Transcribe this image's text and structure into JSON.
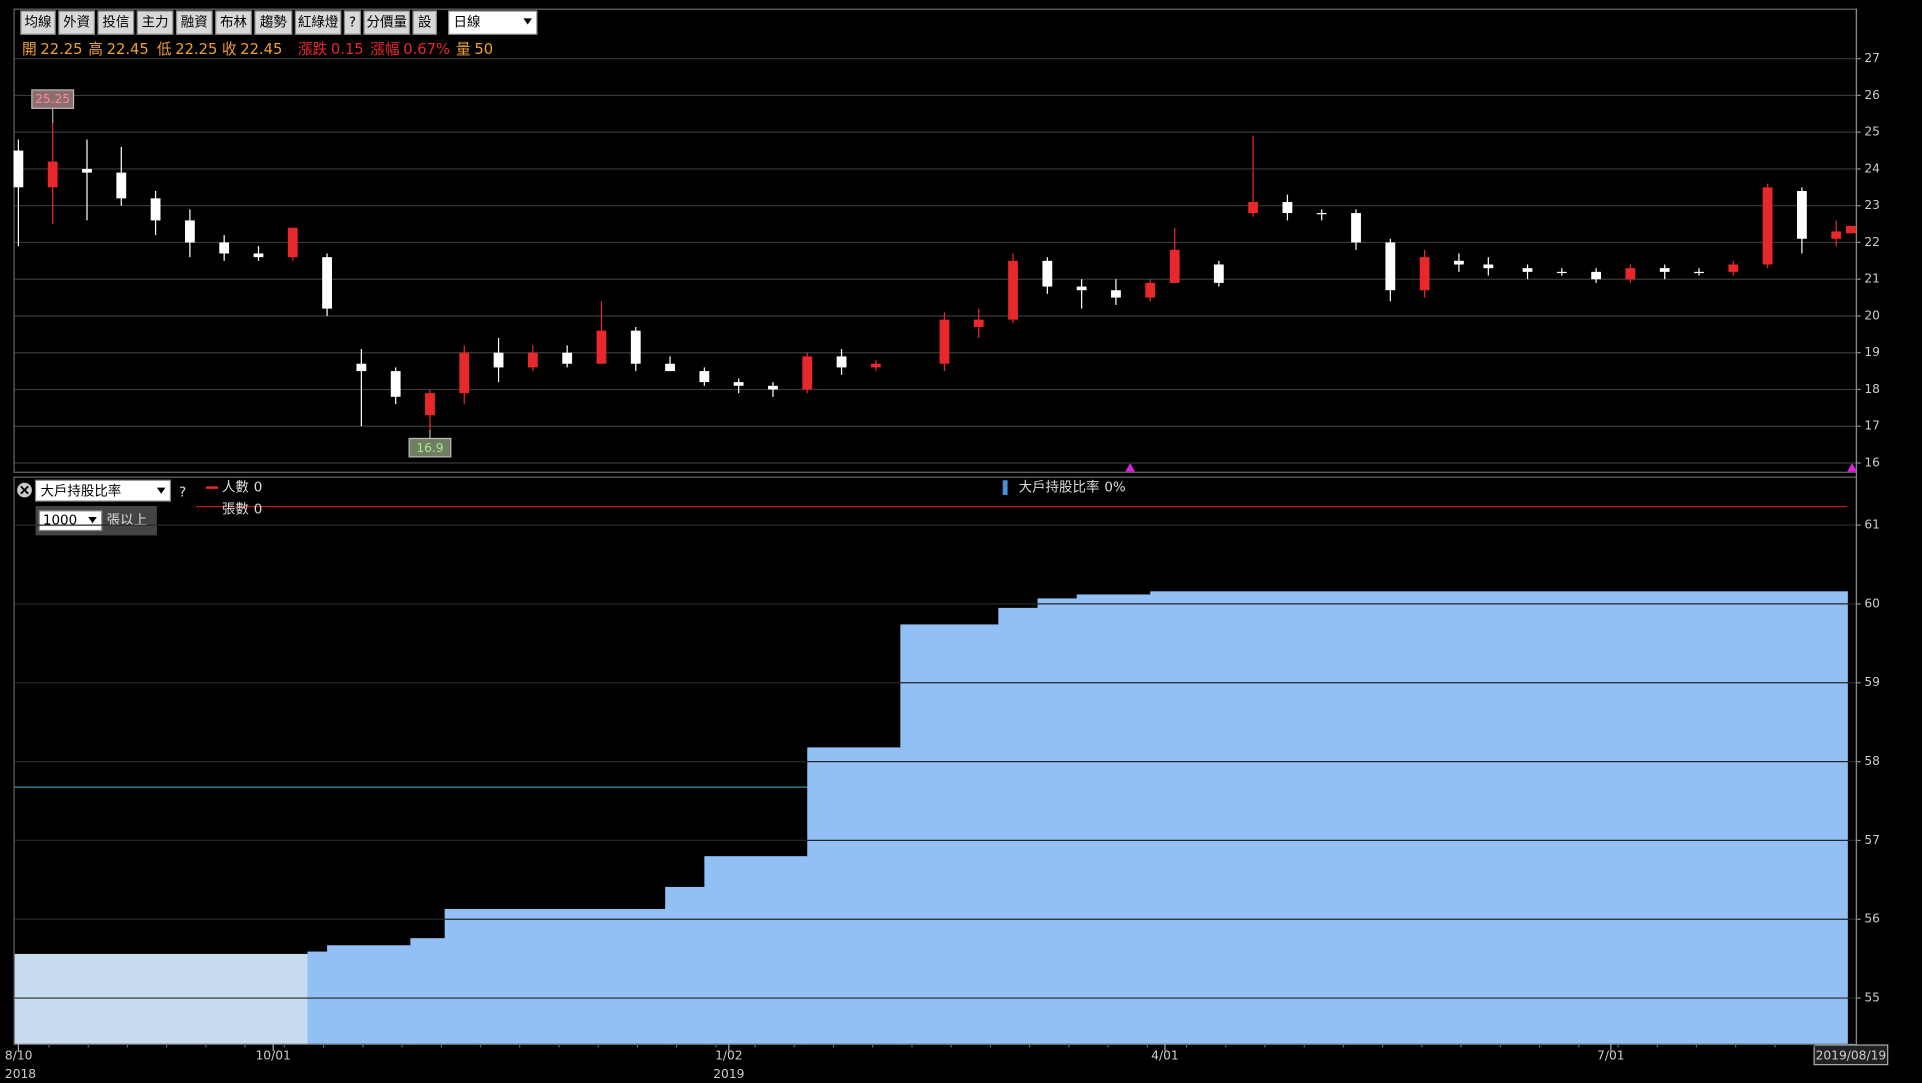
{
  "toolbar": {
    "buttons": [
      "均線",
      "外資",
      "投信",
      "主力",
      "融資",
      "布林",
      "趨勢",
      "紅綠燈",
      "?",
      "分價量",
      "設"
    ],
    "period": "日線"
  },
  "quote": [
    {
      "label": "開",
      "value": "22.25",
      "color": "#f0a030"
    },
    {
      "label": "高",
      "value": "22.45",
      "color": "#f0a030"
    },
    {
      "label": "低",
      "value": "22.25",
      "color": "#f0a030"
    },
    {
      "label": "收",
      "value": "22.45",
      "color": "#f0a030"
    },
    {
      "label": "漲跌",
      "value": "0.15",
      "color": "#e8282b"
    },
    {
      "label": "漲幅",
      "value": "0.67%",
      "color": "#e8282b"
    },
    {
      "label": "量",
      "value": "50",
      "color": "#f0a030"
    }
  ],
  "indicator": {
    "name": "大戶持股比率",
    "help": "?",
    "threshold": "1000",
    "unit": "張以上",
    "legend": [
      {
        "name": "人數",
        "value": "0",
        "color": "#e8282b"
      },
      {
        "name": "張數",
        "value": "0"
      },
      {
        "name": "大戶持股比率",
        "value": "0%",
        "color": "#4a90d9"
      }
    ]
  },
  "chart_data": [
    {
      "type": "candlestick",
      "up_color": "#e8282b",
      "down_color": "#ffffff",
      "xlim": [
        "2018-08-10",
        "2019-08-19"
      ],
      "ylim": [
        15.73,
        28.33
      ],
      "yticks": [
        16,
        17,
        18,
        19,
        20,
        21,
        22,
        23,
        24,
        25,
        26,
        27
      ],
      "grid": true,
      "x": [
        "2018-08-10",
        "2018-08-17",
        "2018-08-24",
        "2018-08-31",
        "2018-09-07",
        "2018-09-14",
        "2018-09-21",
        "2018-09-28",
        "2018-10-05",
        "2018-10-12",
        "2018-10-19",
        "2018-10-26",
        "2018-11-02",
        "2018-11-09",
        "2018-11-16",
        "2018-11-23",
        "2018-11-30",
        "2018-12-07",
        "2018-12-14",
        "2018-12-21",
        "2018-12-28",
        "2019-01-04",
        "2019-01-11",
        "2019-01-18",
        "2019-01-25",
        "2019-02-01",
        "2019-02-15",
        "2019-02-22",
        "2019-03-01",
        "2019-03-08",
        "2019-03-15",
        "2019-03-22",
        "2019-03-29",
        "2019-04-03",
        "2019-04-12",
        "2019-04-19",
        "2019-04-26",
        "2019-05-03",
        "2019-05-10",
        "2019-05-17",
        "2019-05-24",
        "2019-05-31",
        "2019-06-06",
        "2019-06-14",
        "2019-06-21",
        "2019-06-28",
        "2019-07-05",
        "2019-07-12",
        "2019-07-19",
        "2019-07-26",
        "2019-08-02",
        "2019-08-09",
        "2019-08-16",
        "2019-08-19"
      ],
      "open": [
        24.5,
        23.5,
        24.0,
        23.9,
        23.2,
        22.6,
        22.0,
        21.7,
        21.6,
        21.6,
        18.7,
        18.5,
        17.3,
        17.9,
        19.0,
        18.6,
        19.0,
        18.7,
        19.6,
        18.7,
        18.5,
        18.2,
        18.1,
        18.0,
        18.9,
        18.6,
        18.7,
        19.7,
        19.9,
        21.5,
        20.8,
        20.7,
        20.5,
        20.9,
        21.4,
        22.8,
        23.1,
        22.8,
        22.8,
        22.0,
        20.7,
        21.5,
        21.4,
        21.3,
        21.2,
        21.2,
        21.0,
        21.3,
        21.2,
        21.2,
        21.4,
        23.4,
        22.1,
        22.25
      ],
      "high": [
        24.8,
        25.25,
        24.8,
        24.6,
        23.4,
        22.9,
        22.2,
        21.9,
        22.4,
        21.7,
        19.1,
        18.6,
        18.0,
        19.2,
        19.4,
        19.2,
        19.2,
        20.4,
        19.7,
        18.9,
        18.6,
        18.3,
        18.2,
        19.0,
        19.1,
        18.8,
        20.1,
        20.2,
        21.7,
        21.6,
        21.0,
        21.0,
        21.0,
        22.4,
        21.5,
        24.9,
        23.3,
        22.9,
        22.9,
        22.1,
        21.8,
        21.7,
        21.6,
        21.4,
        21.3,
        21.3,
        21.4,
        21.4,
        21.3,
        21.5,
        23.6,
        23.5,
        22.6,
        22.45
      ],
      "low": [
        21.9,
        22.5,
        22.6,
        23.0,
        22.2,
        21.6,
        21.5,
        21.5,
        21.5,
        20.0,
        17.0,
        17.6,
        16.9,
        17.6,
        18.2,
        18.5,
        18.6,
        18.7,
        18.5,
        18.5,
        18.1,
        17.9,
        17.8,
        17.9,
        18.4,
        18.5,
        18.5,
        19.4,
        19.8,
        20.6,
        20.2,
        20.3,
        20.4,
        20.9,
        20.8,
        22.7,
        22.6,
        22.6,
        21.8,
        20.4,
        20.5,
        21.2,
        21.1,
        21.0,
        21.1,
        20.9,
        20.9,
        21.0,
        21.1,
        21.1,
        21.3,
        21.7,
        21.9,
        22.25
      ],
      "close": [
        23.5,
        24.2,
        23.9,
        23.2,
        22.6,
        22.0,
        21.7,
        21.6,
        22.4,
        20.2,
        18.5,
        17.8,
        17.9,
        19.0,
        18.6,
        19.0,
        18.7,
        19.6,
        18.7,
        18.5,
        18.2,
        18.1,
        18.0,
        18.9,
        18.6,
        18.7,
        19.9,
        19.9,
        21.5,
        20.8,
        20.7,
        20.5,
        20.9,
        21.8,
        20.9,
        23.1,
        22.8,
        22.8,
        22.0,
        20.7,
        21.6,
        21.4,
        21.3,
        21.2,
        21.2,
        21.0,
        21.3,
        21.2,
        21.2,
        21.4,
        23.5,
        22.1,
        22.3,
        22.45
      ],
      "annotations": [
        {
          "x": "2018-08-17",
          "value": 25.25
        },
        {
          "x": "2018-11-02",
          "value": 16.9
        }
      ]
    },
    {
      "type": "step-area",
      "color": "#92c0f5",
      "first_color": "#c8dcf0",
      "xlim": [
        "2018-08-10",
        "2019-08-19"
      ],
      "ylim": [
        54.42,
        61.6
      ],
      "yticks": [
        55,
        56,
        57,
        58,
        59,
        60,
        61
      ],
      "grid": true,
      "x": [
        "2018-08-10",
        "2018-10-08",
        "2018-10-12",
        "2018-10-29",
        "2018-11-05",
        "2018-12-20",
        "2018-12-28",
        "2019-01-18",
        "2019-02-06",
        "2019-02-26",
        "2019-03-06",
        "2019-03-14",
        "2019-03-29"
      ],
      "values": [
        55.56,
        55.59,
        55.67,
        55.76,
        56.13,
        56.41,
        56.8,
        58.18,
        59.74,
        59.95,
        60.07,
        60.12,
        60.16
      ],
      "xticks": [
        {
          "value": "2018-08-10",
          "label": "8/10"
        },
        {
          "value": "2018-10-01",
          "label": "10/01"
        },
        {
          "value": "2019-01-02",
          "label": "1/02"
        },
        {
          "value": "2019-04-01",
          "label": "4/01"
        },
        {
          "value": "2019-07-01",
          "label": "7/01"
        },
        {
          "value": "2019-08-19",
          "label": "2019/08/19"
        }
      ],
      "year_labels": [
        {
          "value": "2018-08-10",
          "label": "2018"
        },
        {
          "value": "2019-01-02",
          "label": "2019"
        }
      ]
    }
  ]
}
